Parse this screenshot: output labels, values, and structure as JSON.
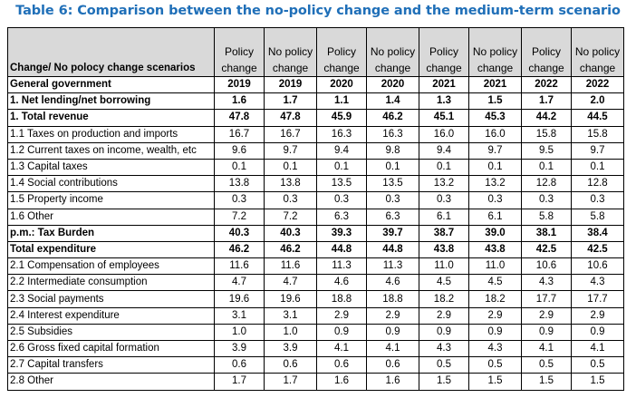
{
  "title": "Table 6: Comparison between the no-policy change and the medium-term scenario",
  "header": {
    "row_label": "Change/ No polocy change scenarios",
    "columns": [
      {
        "line1": "Policy",
        "line2": "change"
      },
      {
        "line1": "No policy",
        "line2": "change"
      },
      {
        "line1": "Policy",
        "line2": "change"
      },
      {
        "line1": "No policy",
        "line2": "change"
      },
      {
        "line1": "Policy",
        "line2": "change"
      },
      {
        "line1": "No policy",
        "line2": "change"
      },
      {
        "line1": "Policy",
        "line2": "change"
      },
      {
        "line1": "No policy",
        "line2": "change"
      }
    ]
  },
  "general_row": {
    "label": "General government",
    "years": [
      "2019",
      "2019",
      "2020",
      "2020",
      "2021",
      "2021",
      "2022",
      "2022"
    ]
  },
  "rows": [
    {
      "label": "1. Net lending/net borrowing",
      "bold": true,
      "values": [
        "1.6",
        "1.7",
        "1.1",
        "1.4",
        "1.3",
        "1.5",
        "1.7",
        "2.0"
      ]
    },
    {
      "label": "1. Total revenue",
      "bold": true,
      "values": [
        "47.8",
        "47.8",
        "45.9",
        "46.2",
        "45.1",
        "45.3",
        "44.2",
        "44.5"
      ]
    },
    {
      "label": "1.1 Taxes on production and imports",
      "bold": false,
      "values": [
        "16.7",
        "16.7",
        "16.3",
        "16.3",
        "16.0",
        "16.0",
        "15.8",
        "15.8"
      ]
    },
    {
      "label": "1.2 Current taxes on income, wealth, etc",
      "bold": false,
      "values": [
        "9.6",
        "9.7",
        "9.4",
        "9.8",
        "9.4",
        "9.7",
        "9.5",
        "9.7"
      ]
    },
    {
      "label": "1.3 Capital taxes",
      "bold": false,
      "values": [
        "0.1",
        "0.1",
        "0.1",
        "0.1",
        "0.1",
        "0.1",
        "0.1",
        "0.1"
      ]
    },
    {
      "label": "1.4 Social contributions",
      "bold": false,
      "values": [
        "13.8",
        "13.8",
        "13.5",
        "13.5",
        "13.2",
        "13.2",
        "12.8",
        "12.8"
      ]
    },
    {
      "label": "1.5 Property income",
      "bold": false,
      "values": [
        "0.3",
        "0.3",
        "0.3",
        "0.3",
        "0.3",
        "0.3",
        "0.3",
        "0.3"
      ]
    },
    {
      "label": "1.6 Other",
      "bold": false,
      "values": [
        "7.2",
        "7.2",
        "6.3",
        "6.3",
        "6.1",
        "6.1",
        "5.8",
        "5.8"
      ]
    },
    {
      "label": "p.m.: Tax Burden",
      "bold": true,
      "values": [
        "40.3",
        "40.3",
        "39.3",
        "39.7",
        "38.7",
        "39.0",
        "38.1",
        "38.4"
      ]
    },
    {
      "label": "Total expenditure",
      "bold": true,
      "values": [
        "46.2",
        "46.2",
        "44.8",
        "44.8",
        "43.8",
        "43.8",
        "42.5",
        "42.5"
      ]
    },
    {
      "label": "2.1 Compensation of employees",
      "bold": false,
      "values": [
        "11.6",
        "11.6",
        "11.3",
        "11.3",
        "11.0",
        "11.0",
        "10.6",
        "10.6"
      ]
    },
    {
      "label": "2.2 Intermediate consumption",
      "bold": false,
      "values": [
        "4.7",
        "4.7",
        "4.6",
        "4.6",
        "4.5",
        "4.5",
        "4.3",
        "4.3"
      ]
    },
    {
      "label": "2.3 Social payments",
      "bold": false,
      "values": [
        "19.6",
        "19.6",
        "18.8",
        "18.8",
        "18.2",
        "18.2",
        "17.7",
        "17.7"
      ]
    },
    {
      "label": "2.4 Interest expenditure",
      "bold": false,
      "values": [
        "3.1",
        "3.1",
        "2.9",
        "2.9",
        "2.9",
        "2.9",
        "2.9",
        "2.9"
      ]
    },
    {
      "label": "2.5 Subsidies",
      "bold": false,
      "values": [
        "1.0",
        "1.0",
        "0.9",
        "0.9",
        "0.9",
        "0.9",
        "0.9",
        "0.9"
      ]
    },
    {
      "label": "2.6 Gross fixed capital formation",
      "bold": false,
      "values": [
        "3.9",
        "3.9",
        "4.1",
        "4.1",
        "4.3",
        "4.3",
        "4.1",
        "4.1"
      ]
    },
    {
      "label": "2.7 Capital transfers",
      "bold": false,
      "values": [
        "0.6",
        "0.6",
        "0.6",
        "0.6",
        "0.5",
        "0.5",
        "0.5",
        "0.5"
      ]
    },
    {
      "label": "2.8 Other",
      "bold": false,
      "values": [
        "1.7",
        "1.7",
        "1.6",
        "1.6",
        "1.5",
        "1.5",
        "1.5",
        "1.5"
      ]
    }
  ]
}
